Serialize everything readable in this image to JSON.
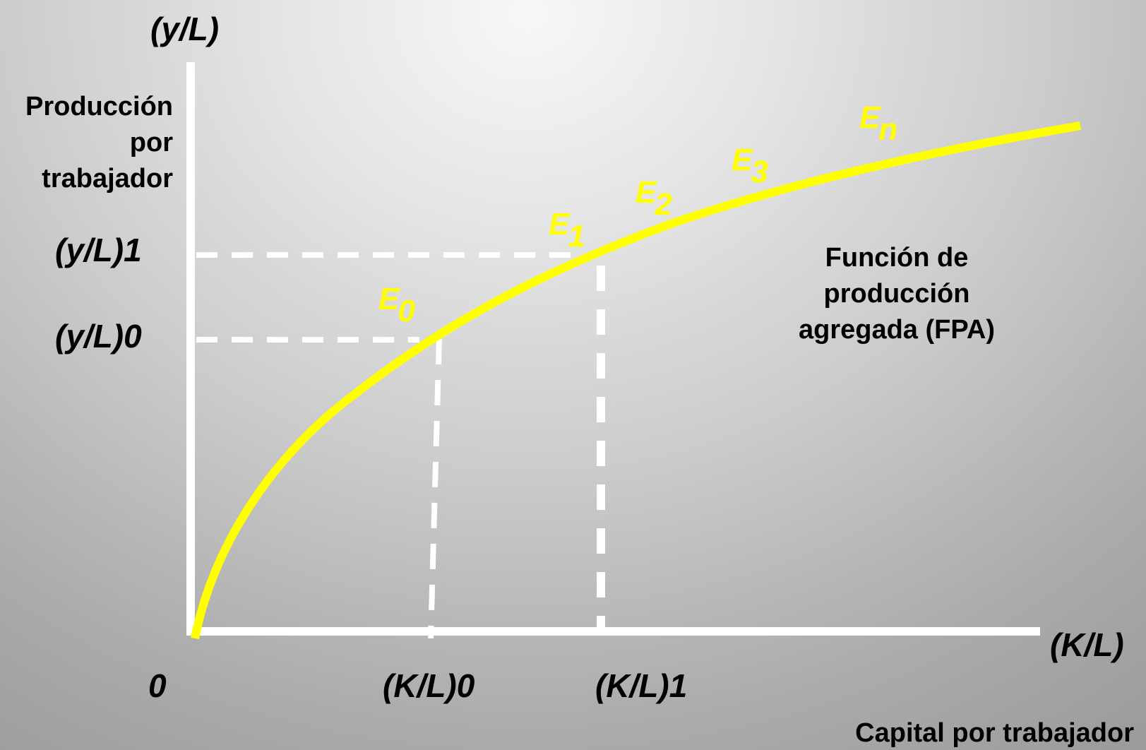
{
  "axes": {
    "y_symbol": "(y/L)",
    "y_title_lines": [
      "Producción",
      "por",
      "trabajador"
    ],
    "x_symbol": "(K/L)",
    "x_title": "Capital por trabajador",
    "origin": "0"
  },
  "levels": {
    "y1": "(y/L)1",
    "y0": "(y/L)0",
    "k0": "(K/L)0",
    "k1": "(K/L)1"
  },
  "curve": {
    "label_lines": [
      "Función de",
      "producción",
      "agregada (FPA)"
    ],
    "color": "#ffff00"
  },
  "points": [
    {
      "letter": "E",
      "sub": "0"
    },
    {
      "letter": "E",
      "sub": "1"
    },
    {
      "letter": "E",
      "sub": "2"
    },
    {
      "letter": "E",
      "sub": "3"
    },
    {
      "letter": "E",
      "sub": "n"
    }
  ],
  "colors": {
    "axis": "#ffffff",
    "guides": "#ffffff",
    "text": "#000000",
    "points": "#ffff00"
  }
}
